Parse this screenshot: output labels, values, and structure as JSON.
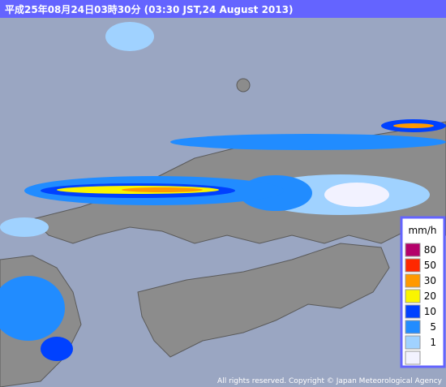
{
  "header": {
    "title": "平成25年08月24日03時30分 (03:30 JST,24 August 2013)"
  },
  "legend": {
    "unit": "mm/h",
    "levels": [
      {
        "value": 80,
        "color": "#b4006a"
      },
      {
        "value": 50,
        "color": "#ff2800"
      },
      {
        "value": 30,
        "color": "#ff9900"
      },
      {
        "value": 20,
        "color": "#faf500"
      },
      {
        "value": 10,
        "color": "#0041ff"
      },
      {
        "value": 5,
        "color": "#218cff"
      },
      {
        "value": 1,
        "color": "#a0d2ff"
      },
      {
        "value": null,
        "color": "#f2f2ff"
      }
    ]
  },
  "footer": {
    "copyright": "All rights reserved. Copyright © Japan Meteorological Agency"
  }
}
